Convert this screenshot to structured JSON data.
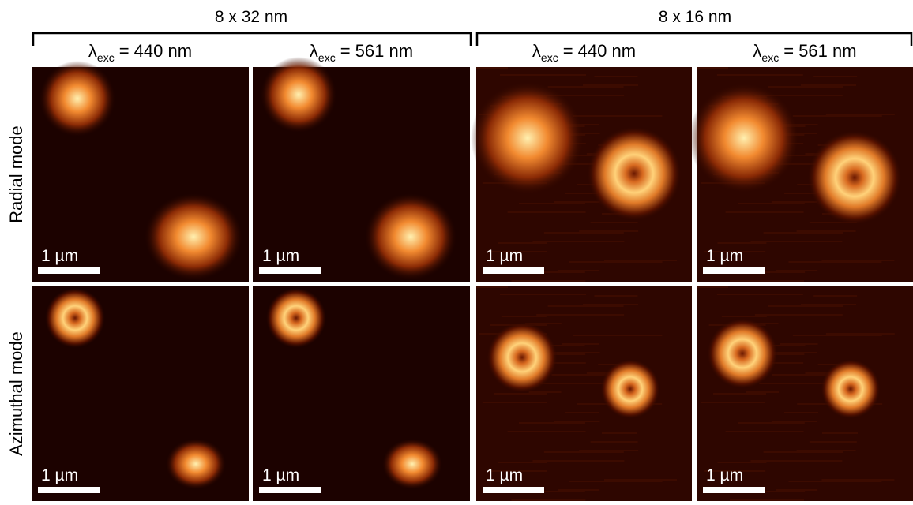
{
  "groups": [
    {
      "label": "8 x 32 nm",
      "columns": [
        {
          "symbol": "λ",
          "subscript": "exc",
          "text": "= 440 nm"
        },
        {
          "symbol": "λ",
          "subscript": "exc",
          "text": "= 561 nm"
        }
      ]
    },
    {
      "label": "8 x 16 nm",
      "columns": [
        {
          "symbol": "λ",
          "subscript": "exc",
          "text": "= 440 nm"
        },
        {
          "symbol": "λ",
          "subscript": "exc",
          "text": "= 561 nm"
        }
      ]
    }
  ],
  "rows": [
    {
      "label": "Radial mode",
      "panels": [
        {
          "scale_bar": "1 µm"
        },
        {
          "scale_bar": "1 µm"
        },
        {
          "scale_bar": "1 µm"
        },
        {
          "scale_bar": "1 µm"
        }
      ]
    },
    {
      "label": "Azimuthal mode",
      "panels": [
        {
          "scale_bar": "1 µm"
        },
        {
          "scale_bar": "1 µm"
        },
        {
          "scale_bar": "1 µm"
        },
        {
          "scale_bar": "1 µm"
        }
      ]
    }
  ]
}
